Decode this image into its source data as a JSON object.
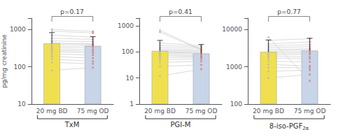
{
  "chart_data": [
    {
      "type": "bar",
      "title": "TxM",
      "annotations": [
        "p=0.17"
      ],
      "ylabel": "pg/mg creatinine",
      "categories": [
        "20 mg BD",
        "75 mg OD"
      ],
      "values": [
        420,
        360
      ],
      "colors": [
        "#f0e050",
        "#c8d4e8"
      ],
      "error_top": [
        820,
        640
      ],
      "error_color": "#444444",
      "points": [
        [
          80,
          130,
          160,
          190,
          220,
          250,
          270,
          290,
          320,
          350,
          390,
          440,
          490,
          580,
          700,
          900,
          1000
        ],
        [
          95,
          120,
          140,
          170,
          205,
          235,
          260,
          290,
          330,
          370,
          420,
          390,
          470,
          540,
          620,
          800,
          880
        ]
      ],
      "point_colors": [
        "#b8b8b8",
        "#d08080"
      ],
      "line_color": "#c8c8c8",
      "annotation_color": "#444444",
      "bracket_color": "#666666",
      "log": "y",
      "ylim": [
        10,
        2000
      ],
      "yticks": [
        10,
        100,
        1000
      ],
      "grid": false
    },
    {
      "type": "bar",
      "title": "PGI-M",
      "annotations": [
        "p=0.41"
      ],
      "categories": [
        "20 mg BD",
        "75 mg OD"
      ],
      "values": [
        110,
        88
      ],
      "colors": [
        "#f0e050",
        "#c8d4e8"
      ],
      "error_top": [
        280,
        195
      ],
      "error_color": "#444444",
      "points": [
        [
          12,
          28,
          40,
          52,
          62,
          72,
          82,
          92,
          98,
          105,
          115,
          130,
          150,
          180,
          220,
          580,
          680
        ],
        [
          22,
          32,
          44,
          54,
          62,
          67,
          72,
          82,
          90,
          98,
          108,
          118,
          138,
          155,
          175,
          120,
          125
        ]
      ],
      "point_colors": [
        "#b8b8b8",
        "#d08080"
      ],
      "line_color": "#c8c8c8",
      "annotation_color": "#444444",
      "bracket_color": "#666666",
      "log": "y",
      "ylim": [
        1,
        2000
      ],
      "yticks": [
        1,
        10,
        100,
        1000
      ],
      "grid": false
    },
    {
      "type": "bar",
      "title": "8-iso-PGF",
      "title_sub": "2α",
      "annotations": [
        "p=0.77"
      ],
      "categories": [
        "20 mg BD",
        "75 mg OD"
      ],
      "values": [
        2500,
        2700
      ],
      "colors": [
        "#f0e050",
        "#c8d4e8"
      ],
      "error_top": [
        5200,
        5800
      ],
      "error_color": "#444444",
      "points": [
        [
          500,
          750,
          950,
          1150,
          1400,
          1650,
          1850,
          2050,
          2250,
          2450,
          2650,
          2900,
          3250,
          3650,
          4100,
          5100,
          6200
        ],
        [
          620,
          820,
          940,
          1050,
          1350,
          1650,
          1850,
          2150,
          2350,
          2550,
          2850,
          3050,
          3450,
          3900,
          4600,
          5600,
          420
        ]
      ],
      "point_colors": [
        "#b8b8b8",
        "#d08080"
      ],
      "line_color": "#c8c8c8",
      "annotation_color": "#444444",
      "bracket_color": "#666666",
      "log": "y",
      "ylim": [
        100,
        20000
      ],
      "yticks": [
        100,
        1000,
        10000
      ],
      "grid": false
    }
  ]
}
